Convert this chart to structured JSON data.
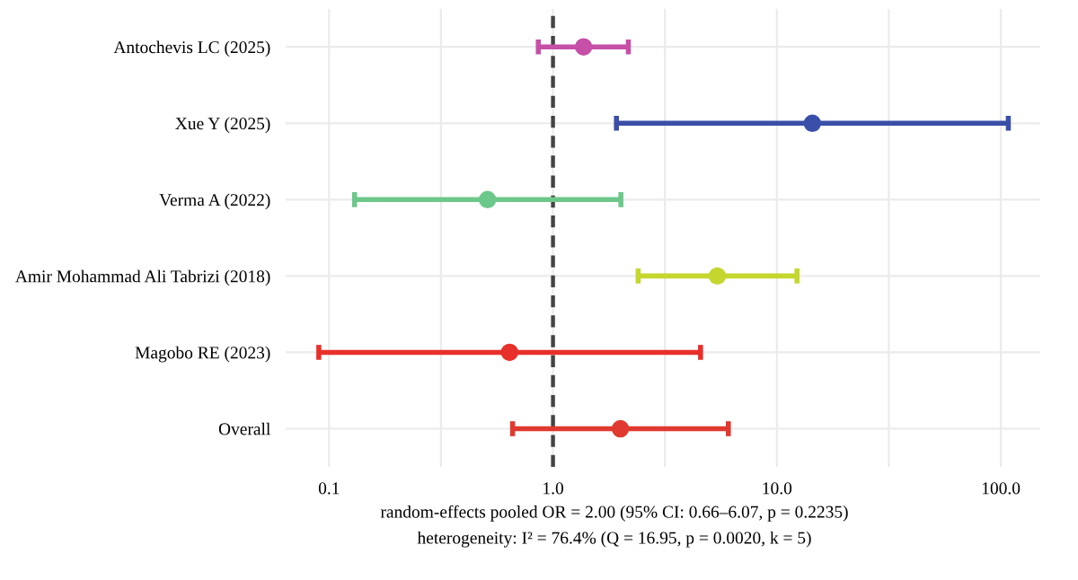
{
  "chart_data": {
    "type": "scatter",
    "orientation": "horizontal",
    "categories": [
      "Antochevis LC (2025)",
      "Xue Y (2025)",
      "Verma A (2022)",
      "Amir Mohammad Ali Tabrizi (2018)",
      "Magobo RE (2023)",
      "Overall"
    ],
    "values": [
      1.37,
      14.4,
      0.51,
      5.42,
      0.64,
      2.0
    ],
    "errors": [
      [
        0.86,
        2.17
      ],
      [
        1.92,
        108
      ],
      [
        0.13,
        2.01
      ],
      [
        2.4,
        12.3
      ],
      [
        0.09,
        4.56
      ],
      [
        0.66,
        6.07
      ]
    ],
    "colors": [
      "#c64fa8",
      "#3a4fa8",
      "#6cc78a",
      "#c5d62e",
      "#e8302a",
      "#e03a30"
    ],
    "log": "x",
    "xlim": [
      0.064,
      150
    ],
    "xticks": [
      {
        "value": 0.1,
        "label": "0.1"
      },
      {
        "value": 0.316,
        "label": null
      },
      {
        "value": 1,
        "label": "1.0"
      },
      {
        "value": 3.16,
        "label": null
      },
      {
        "value": 10,
        "label": "10.0"
      },
      {
        "value": 31.6,
        "label": null
      },
      {
        "value": 100,
        "label": "100.0"
      }
    ],
    "grid": true,
    "marker": "circle",
    "ref_lines": [
      {
        "axis": "x",
        "value": 1,
        "label": null,
        "color": "#444444",
        "line_style": "dashed"
      }
    ],
    "annotations": [
      "random-effects pooled OR = 2.00 (95% CI: 0.66–6.07, p = 0.2235)",
      "heterogeneity: I² = 76.4% (Q = 16.95, p = 0.0020, k = 5)"
    ]
  }
}
